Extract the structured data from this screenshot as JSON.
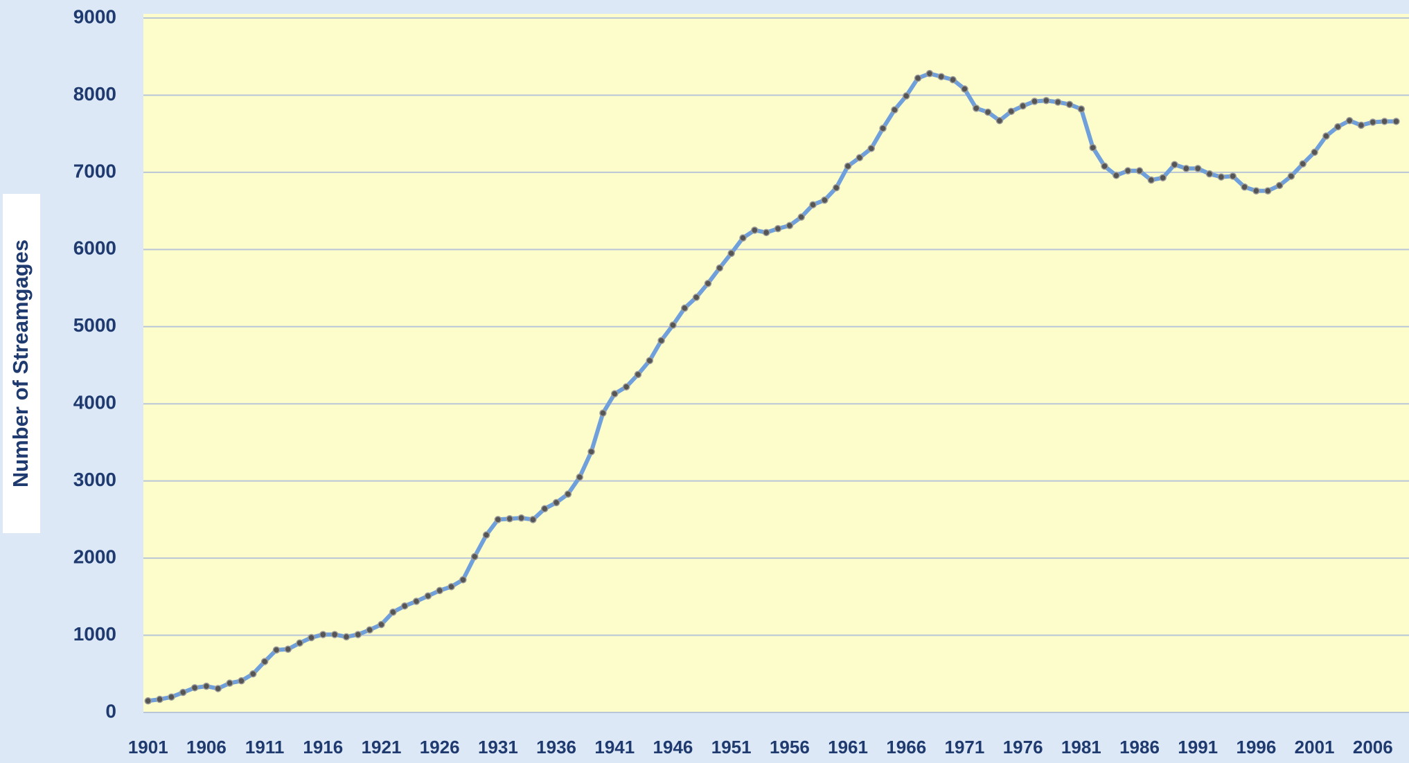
{
  "chart_data": {
    "type": "line",
    "y_label": "Number of Streamgages",
    "x": [
      1901,
      1902,
      1903,
      1904,
      1905,
      1906,
      1907,
      1908,
      1909,
      1910,
      1911,
      1912,
      1913,
      1914,
      1915,
      1916,
      1917,
      1918,
      1919,
      1920,
      1921,
      1922,
      1923,
      1924,
      1925,
      1926,
      1927,
      1928,
      1929,
      1930,
      1931,
      1932,
      1933,
      1934,
      1935,
      1936,
      1937,
      1938,
      1939,
      1940,
      1941,
      1942,
      1943,
      1944,
      1945,
      1946,
      1947,
      1948,
      1949,
      1950,
      1951,
      1952,
      1953,
      1954,
      1955,
      1956,
      1957,
      1958,
      1959,
      1960,
      1961,
      1962,
      1963,
      1964,
      1965,
      1966,
      1967,
      1968,
      1969,
      1970,
      1971,
      1972,
      1973,
      1974,
      1975,
      1976,
      1977,
      1978,
      1979,
      1980,
      1981,
      1982,
      1983,
      1984,
      1985,
      1986,
      1987,
      1988,
      1989,
      1990,
      1991,
      1992,
      1993,
      1994,
      1995,
      1996,
      1997,
      1998,
      1999,
      2000,
      2001,
      2002,
      2003,
      2004,
      2005,
      2006,
      2007,
      2008
    ],
    "series": [
      {
        "name": "Number of Streamgages",
        "color": "#6fa0dc",
        "marker_color": "#555555",
        "values": [
          150,
          170,
          200,
          260,
          320,
          340,
          310,
          380,
          410,
          500,
          660,
          810,
          820,
          900,
          970,
          1010,
          1010,
          980,
          1010,
          1070,
          1140,
          1300,
          1380,
          1440,
          1510,
          1580,
          1630,
          1720,
          2020,
          2300,
          2500,
          2510,
          2520,
          2500,
          2640,
          2720,
          2830,
          3050,
          3380,
          3880,
          4130,
          4220,
          4380,
          4560,
          4820,
          5020,
          5240,
          5380,
          5560,
          5760,
          5950,
          6150,
          6250,
          6220,
          6270,
          6310,
          6420,
          6580,
          6640,
          6800,
          7080,
          7190,
          7310,
          7570,
          7810,
          7990,
          8220,
          8280,
          8240,
          8200,
          8080,
          7830,
          7780,
          7670,
          7790,
          7860,
          7920,
          7930,
          7910,
          7880,
          7820,
          7320,
          7080,
          6960,
          7020,
          7020,
          6900,
          6930,
          7100,
          7050,
          7050,
          6980,
          6940,
          6950,
          6810,
          6760,
          6760,
          6830,
          6950,
          7110,
          7260,
          7470,
          7590,
          7670,
          7610,
          7650,
          7660,
          7660
        ]
      }
    ],
    "xlim": [
      1900.6,
      2009.1
    ],
    "xticks": [
      1901,
      1906,
      1911,
      1916,
      1921,
      1926,
      1931,
      1936,
      1941,
      1946,
      1951,
      1956,
      1961,
      1966,
      1971,
      1976,
      1981,
      1986,
      1991,
      1996,
      2001,
      2006
    ],
    "ylim": [
      0,
      9000
    ],
    "yticks": [
      0,
      1000,
      2000,
      3000,
      4000,
      5000,
      6000,
      7000,
      8000,
      9000
    ],
    "grid": true,
    "plot_background": "#fdfccb"
  }
}
